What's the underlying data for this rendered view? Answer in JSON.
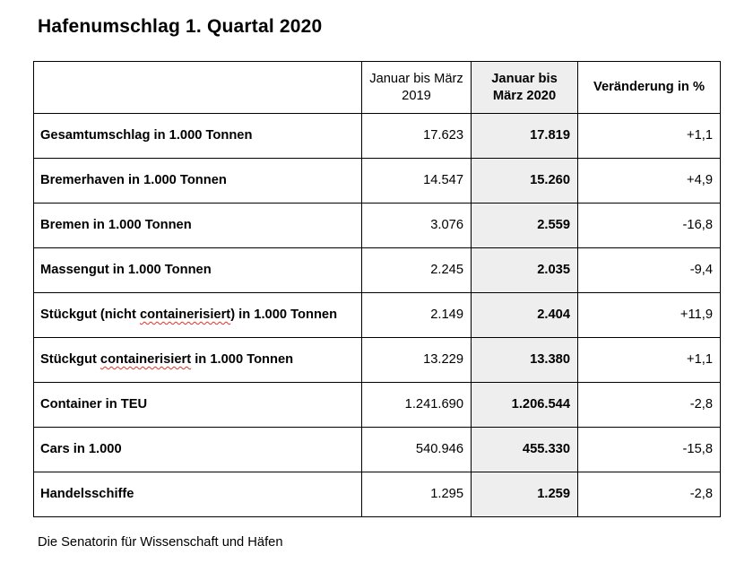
{
  "page": {
    "title": "Hafenumschlag 1. Quartal 2020",
    "source_note": "Die Senatorin für Wissenschaft und Häfen"
  },
  "colors": {
    "highlight_column_bg": "#eeeeee",
    "table_border": "#000000",
    "spellcheck_underline": "#e03229",
    "text": "#000000"
  },
  "table": {
    "headers": {
      "label": "",
      "period_2019": "Januar bis März 2019",
      "period_2020": "Januar bis März 2020",
      "change": "Veränderung in %"
    },
    "rows": [
      {
        "label": "Gesamtumschlag in 1.000 Tonnen",
        "y2019": "17.623",
        "y2020": "17.819",
        "change": "+1,1"
      },
      {
        "label": "Bremerhaven in 1.000 Tonnen",
        "y2019": "14.547",
        "y2020": "15.260",
        "change": "+4,9"
      },
      {
        "label": "Bremen in 1.000 Tonnen",
        "y2019": "3.076",
        "y2020": "2.559",
        "change": "-16,8"
      },
      {
        "label": "Massengut in 1.000 Tonnen",
        "y2019": "2.245",
        "y2020": "2.035",
        "change": "-9,4"
      },
      {
        "label_pre": "Stückgut (nicht ",
        "label_misspelled": "containerisiert",
        "label_post": ") in 1.000 Tonnen",
        "y2019": "2.149",
        "y2020": "2.404",
        "change": "+11,9"
      },
      {
        "label_pre": "Stückgut ",
        "label_misspelled": "containerisiert",
        "label_post": " in 1.000 Tonnen",
        "y2019": "13.229",
        "y2020": "13.380",
        "change": "+1,1"
      },
      {
        "label": "Container in TEU",
        "y2019": "1.241.690",
        "y2020": "1.206.544",
        "change": "-2,8"
      },
      {
        "label": "Cars in 1.000",
        "y2019": "540.946",
        "y2020": "455.330",
        "change": "-15,8"
      },
      {
        "label": "Handelsschiffe",
        "y2019": "1.295",
        "y2020": "1.259",
        "change": "-2,8"
      }
    ]
  }
}
